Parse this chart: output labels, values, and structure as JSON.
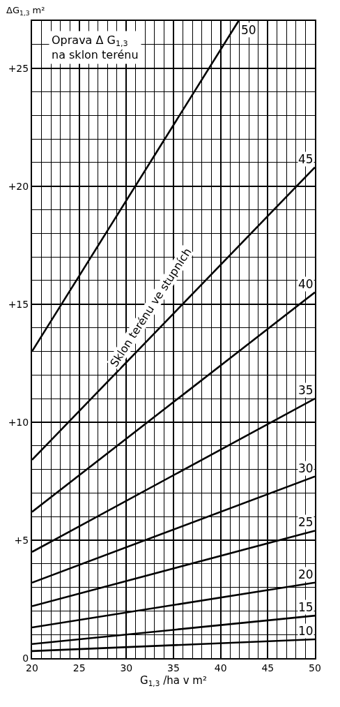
{
  "chart_data": {
    "type": "line",
    "title": "Oprava Δ G$_{1,3}$ na sklon terénu",
    "xlabel": "G$_{1,3}$ /ha v m²",
    "ylabel": "ΔG$_{1,3}$ m²",
    "annotations": [
      "Sklon terénu ve stupních"
    ],
    "xlim": [
      20,
      50
    ],
    "xticks": [
      20,
      25,
      30,
      35,
      40,
      45,
      50
    ],
    "ylim": [
      0,
      27
    ],
    "yticks": [
      0,
      {
        "value": 5,
        "label": "+5"
      },
      {
        "value": 10,
        "label": "+10"
      },
      {
        "value": 15,
        "label": "+15"
      },
      {
        "value": 20,
        "label": "+20"
      },
      {
        "value": 25,
        "label": "+25"
      }
    ],
    "grid": true,
    "legend": false,
    "marker": "none",
    "line_style": "solid",
    "series": [
      {
        "name": "50",
        "color": "#000000",
        "x": [
          20,
          41.9
        ],
        "values": [
          13.0,
          27
        ]
      },
      {
        "name": "45",
        "color": "#000000",
        "x": [
          20,
          50
        ],
        "values": [
          8.4,
          20.8
        ]
      },
      {
        "name": "40",
        "color": "#000000",
        "x": [
          20,
          50
        ],
        "values": [
          6.2,
          15.5
        ]
      },
      {
        "name": "35",
        "color": "#000000",
        "x": [
          20,
          50
        ],
        "values": [
          4.5,
          11.0
        ]
      },
      {
        "name": "30",
        "color": "#000000",
        "x": [
          20,
          50
        ],
        "values": [
          3.2,
          7.7
        ]
      },
      {
        "name": "25",
        "color": "#000000",
        "x": [
          20,
          50
        ],
        "values": [
          2.2,
          5.4
        ]
      },
      {
        "name": "20",
        "color": "#000000",
        "x": [
          20,
          50
        ],
        "values": [
          1.3,
          3.2
        ]
      },
      {
        "name": "15",
        "color": "#000000",
        "x": [
          20,
          50
        ],
        "values": [
          0.6,
          1.8
        ]
      },
      {
        "name": "10",
        "color": "#000000",
        "x": [
          20,
          50
        ],
        "values": [
          0.3,
          0.8
        ]
      }
    ]
  }
}
